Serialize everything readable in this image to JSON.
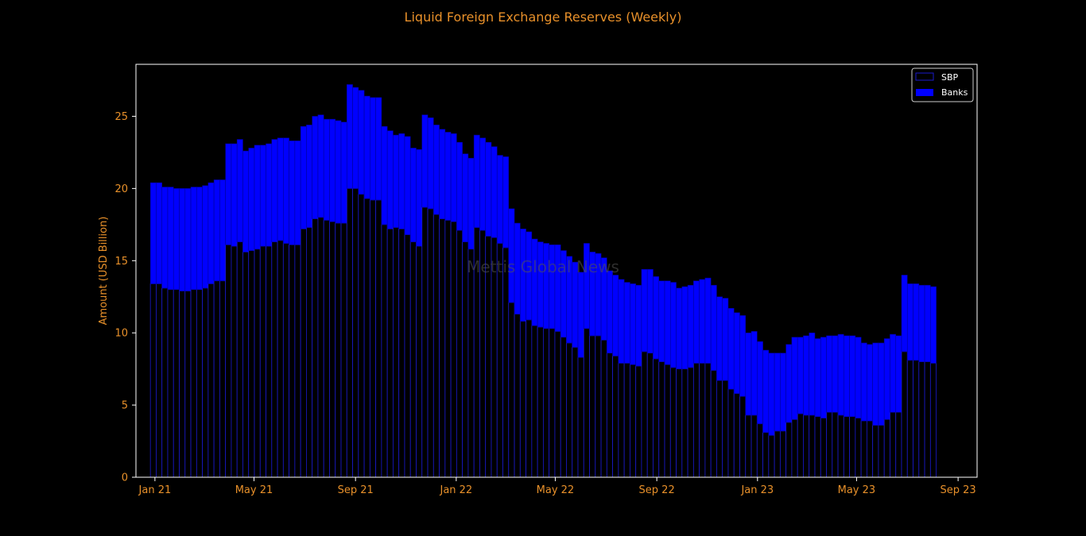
{
  "chart_data": {
    "type": "bar",
    "stacked": true,
    "title": "Liquid Foreign Exchange Reserves (Weekly)",
    "ylabel": "Amount (USD Billion)",
    "ylim": [
      0,
      28.6
    ],
    "yticks": [
      0,
      5,
      10,
      15,
      20,
      25
    ],
    "xlim": [
      "2020-12-09",
      "2023-09-24"
    ],
    "xticks": [
      {
        "date": "2021-01-01",
        "label": "Jan 21"
      },
      {
        "date": "2021-05-01",
        "label": "May 21"
      },
      {
        "date": "2021-09-01",
        "label": "Sep 21"
      },
      {
        "date": "2022-01-01",
        "label": "Jan 22"
      },
      {
        "date": "2022-05-01",
        "label": "May 22"
      },
      {
        "date": "2022-09-01",
        "label": "Sep 22"
      },
      {
        "date": "2023-01-01",
        "label": "Jan 23"
      },
      {
        "date": "2023-05-01",
        "label": "May 23"
      },
      {
        "date": "2023-09-01",
        "label": "Sep 23"
      }
    ],
    "legend_position": "top-right",
    "grid": false,
    "watermark": "Mettis Global News",
    "colors": {
      "background": "#000000",
      "text": "#e8902a",
      "sbp_edge": "#1a1acc",
      "banks": "#0000ff",
      "axes": "#ffffff"
    },
    "series": [
      {
        "name": "SBP",
        "values": [
          13.4,
          13.4,
          13.1,
          13.0,
          13.0,
          12.9,
          12.9,
          13.0,
          13.0,
          13.1,
          13.4,
          13.6,
          13.6,
          16.1,
          16.0,
          16.3,
          15.6,
          15.7,
          15.8,
          16.0,
          16.0,
          16.3,
          16.4,
          16.2,
          16.1,
          16.1,
          17.2,
          17.3,
          17.9,
          18.0,
          17.8,
          17.7,
          17.6,
          17.6,
          20.0,
          20.0,
          19.6,
          19.3,
          19.2,
          19.2,
          17.5,
          17.2,
          17.3,
          17.2,
          16.8,
          16.3,
          16.0,
          18.7,
          18.6,
          18.2,
          17.9,
          17.8,
          17.7,
          17.1,
          16.3,
          15.8,
          17.3,
          17.1,
          16.7,
          16.6,
          16.2,
          15.9,
          12.1,
          11.3,
          10.8,
          10.9,
          10.5,
          10.4,
          10.3,
          10.3,
          10.1,
          9.7,
          9.3,
          9.0,
          8.3,
          10.3,
          9.8,
          9.8,
          9.5,
          8.6,
          8.4,
          7.9,
          7.9,
          7.8,
          7.7,
          8.7,
          8.6,
          8.2,
          8.0,
          7.8,
          7.6,
          7.5,
          7.5,
          7.6,
          7.9,
          7.9,
          7.9,
          7.4,
          6.7,
          6.7,
          6.1,
          5.8,
          5.6,
          4.3,
          4.3,
          3.7,
          3.1,
          2.9,
          3.2,
          3.2,
          3.8,
          4.0,
          4.4,
          4.3,
          4.3,
          4.2,
          4.1,
          4.5,
          4.5,
          4.3,
          4.2,
          4.2,
          4.1,
          3.9,
          3.9,
          3.6,
          3.6,
          4.0,
          4.5,
          4.5,
          8.7,
          8.1,
          8.1,
          8.0,
          8.0,
          7.9
        ]
      },
      {
        "name": "Banks",
        "values": [
          7.0,
          7.0,
          7.0,
          7.1,
          7.0,
          7.1,
          7.1,
          7.1,
          7.1,
          7.1,
          7.0,
          7.0,
          7.0,
          7.0,
          7.1,
          7.1,
          7.0,
          7.1,
          7.2,
          7.0,
          7.1,
          7.1,
          7.1,
          7.3,
          7.2,
          7.2,
          7.1,
          7.1,
          7.1,
          7.1,
          7.0,
          7.1,
          7.1,
          7.0,
          7.2,
          7.0,
          7.2,
          7.1,
          7.1,
          7.1,
          6.8,
          6.8,
          6.4,
          6.6,
          6.8,
          6.5,
          6.7,
          6.4,
          6.3,
          6.2,
          6.2,
          6.1,
          6.1,
          6.1,
          6.1,
          6.3,
          6.4,
          6.4,
          6.5,
          6.3,
          6.1,
          6.3,
          6.5,
          6.3,
          6.4,
          6.1,
          6.0,
          5.9,
          5.9,
          5.8,
          6.0,
          6.0,
          6.0,
          5.9,
          5.9,
          5.9,
          5.8,
          5.7,
          5.7,
          5.7,
          5.6,
          5.8,
          5.6,
          5.6,
          5.6,
          5.7,
          5.8,
          5.7,
          5.6,
          5.8,
          5.9,
          5.6,
          5.7,
          5.7,
          5.7,
          5.8,
          5.9,
          5.9,
          5.8,
          5.7,
          5.6,
          5.6,
          5.6,
          5.7,
          5.8,
          5.7,
          5.7,
          5.7,
          5.4,
          5.4,
          5.4,
          5.7,
          5.3,
          5.5,
          5.7,
          5.4,
          5.6,
          5.3,
          5.3,
          5.6,
          5.6,
          5.6,
          5.6,
          5.4,
          5.3,
          5.7,
          5.7,
          5.6,
          5.4,
          5.3,
          5.3,
          5.3,
          5.3,
          5.3,
          5.3,
          5.3
        ]
      }
    ]
  }
}
